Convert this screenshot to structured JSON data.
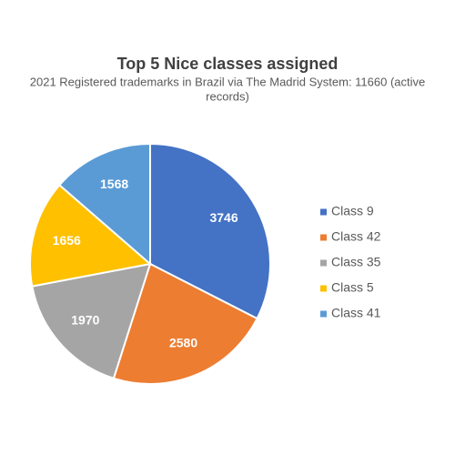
{
  "chart_data": {
    "type": "pie",
    "title": "Top 5 Nice classes assigned",
    "subtitle": [
      "2021 Registered trademarks in Brazil via The Madrid System: 11660 (active",
      "records)"
    ],
    "categories": [
      "Class 9",
      "Class 42",
      "Class 35",
      "Class 5",
      "Class 41"
    ],
    "values": [
      3746,
      2580,
      1970,
      1656,
      1568
    ],
    "colors": [
      "#4472c4",
      "#ed7d31",
      "#a5a5a5",
      "#ffc000",
      "#5b9bd5"
    ],
    "legend": "right"
  }
}
